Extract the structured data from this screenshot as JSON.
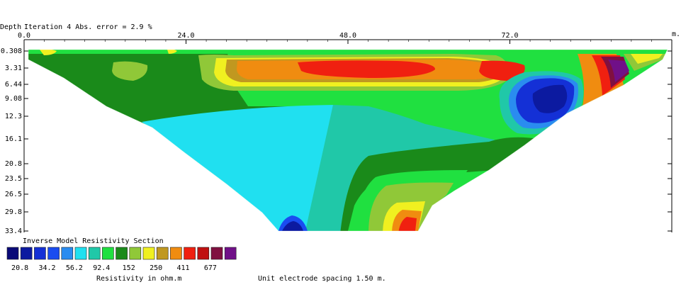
{
  "header": {
    "depth_label": "Depth",
    "iteration_text": "Iteration 4 Abs. error = 2.9 %",
    "distance_unit": "m."
  },
  "legend": {
    "title": "Inverse Model Resistivity Section",
    "colors": [
      "#0a0a78",
      "#0c1aa0",
      "#1430d6",
      "#1a4cf0",
      "#2a8cf0",
      "#20e0f0",
      "#20c8a8",
      "#20e040",
      "#1a8a1a",
      "#90c838",
      "#f0f020",
      "#c09820",
      "#f08c10",
      "#f02010",
      "#c01010",
      "#801040",
      "#701088"
    ],
    "tick_labels": [
      "20.8",
      "34.2",
      "56.2",
      "92.4",
      "152",
      "250",
      "411",
      "677"
    ],
    "units_label": "Resistivity in ohm.m",
    "spacing_label": "Unit electrode spacing 1.50 m."
  },
  "chart_data": {
    "type": "heatmap",
    "title": "Inverse Model Resistivity Section",
    "xlabel": "m.",
    "ylabel": "Depth",
    "x_ticks": [
      0.0,
      24.0,
      48.0,
      72.0
    ],
    "x_tick_labels": [
      "0.0",
      "24.0",
      "48.0",
      "72.0"
    ],
    "xlim": [
      0,
      96
    ],
    "y_ticks": [
      0.308,
      3.31,
      6.44,
      9.08,
      12.3,
      16.1,
      20.8,
      23.5,
      26.5,
      29.8,
      33.4
    ],
    "y_tick_labels": [
      "0.308",
      "3.31",
      "6.44",
      "9.08",
      "12.3",
      "16.1",
      "20.8",
      "23.5",
      "26.5",
      "29.8",
      "33.4"
    ],
    "ylim": [
      0.308,
      33.4
    ],
    "colorbar": {
      "values": [
        20.8,
        34.2,
        56.2,
        92.4,
        152,
        250,
        411,
        677
      ],
      "units": "ohm.m"
    },
    "electrode_spacing_m": 1.5,
    "abs_error_percent": 2.9,
    "iteration": 4
  }
}
